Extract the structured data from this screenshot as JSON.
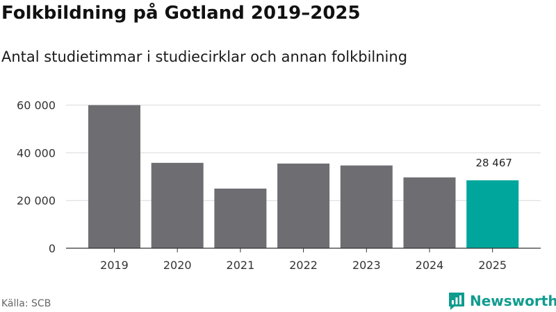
{
  "chart_data": {
    "type": "bar",
    "title": "Folkbildning på Gotland 2019–2025",
    "subtitle": "Antal studietimmar i studiecirklar och annan folkbilning",
    "categories": [
      "2019",
      "2020",
      "2021",
      "2022",
      "2023",
      "2024",
      "2025"
    ],
    "values": [
      60000,
      35800,
      25000,
      35500,
      34700,
      29700,
      28467
    ],
    "highlight_index": 6,
    "highlight_label": "28 467",
    "ylim": [
      0,
      66000
    ],
    "yticks": [
      0,
      20000,
      40000,
      60000
    ],
    "ytick_labels": [
      "0",
      "20 000",
      "40 000",
      "60 000"
    ],
    "grid": true,
    "colors": {
      "bar": "#6e6d72",
      "highlight": "#00a69c",
      "grid": "#d9d9d9",
      "axis": "#333333"
    }
  },
  "footer": {
    "source": "Källa: SCB",
    "brand": "Newsworthy",
    "brand_color": "#0f9c8f",
    "brand_icon": "newsworthy-logo-icon"
  }
}
